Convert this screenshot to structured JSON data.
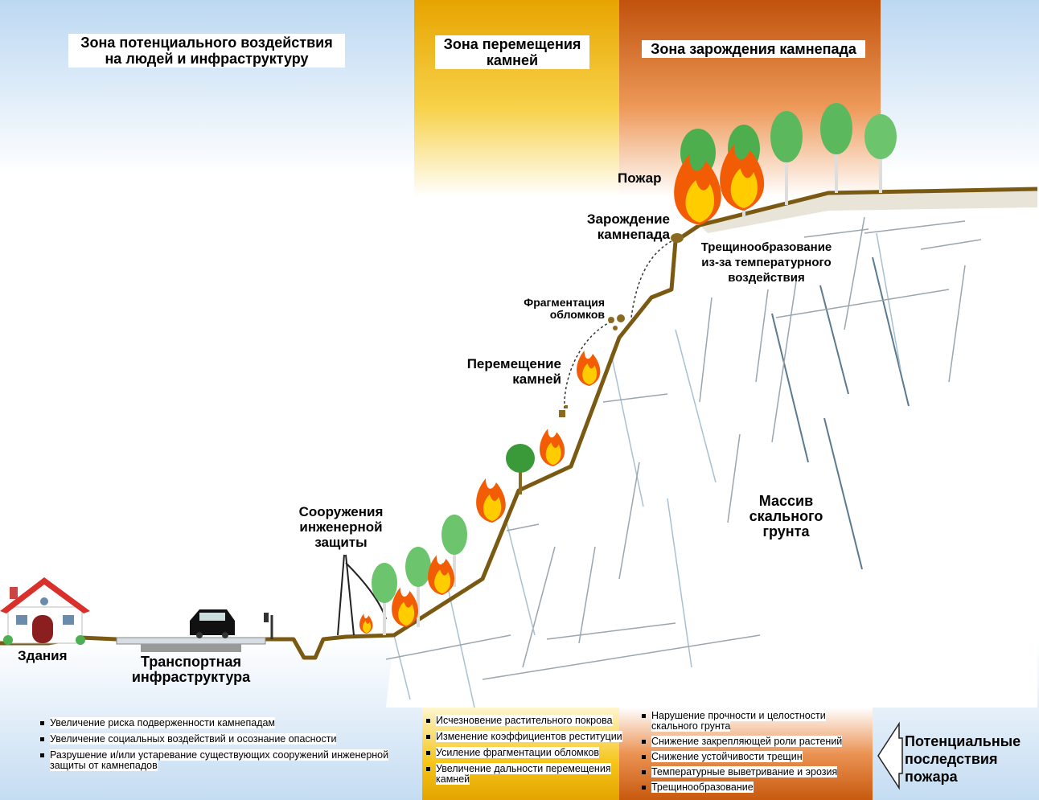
{
  "zones": {
    "impact": "Зона потенциального воздействия на людей и инфраструктуру",
    "transit": "Зона перемещения камней",
    "origin": "Зона зарождения камнепада"
  },
  "labels": {
    "fire": "Пожар",
    "rockfall_origin": "Зарождение камнепада",
    "cracking": "Трещинообразование из-за температурного воздействия",
    "fragmentation": "Фрагментация обломков",
    "movement": "Перемещение камней",
    "protection": "Сооружения инженерной защиты",
    "rock_mass": "Массив скального грунта",
    "buildings": "Здания",
    "transport": "Транспортная инфраструктура",
    "consequences": "Потенциальные последствия пожара"
  },
  "lists": {
    "impact": [
      "Увеличение риска подверженности камнепадам",
      "Увеличение социальных воздействий и осознание опасности",
      "Разрушение и/или устаревание существующих сооружений инженерной защиты от камнепадов"
    ],
    "transit": [
      "Исчезновение растительного покрова",
      "Изменение коэффициентов реституции",
      "Усиление фрагментации обломков",
      "Увеличение дальности перемещения камней"
    ],
    "origin": [
      "Нарушение прочности и целостности скального грунта",
      "Снижение закрепляющей роли растений",
      "Снижение устойчивости трещин",
      "Температурные выветривание и эрозия",
      "Трещинообразование"
    ]
  },
  "colors": {
    "ground": "#7a5a12",
    "transit_zone": "#f5c518",
    "origin_zone": "#d2691e",
    "impact_zone": "#bcd8f2"
  }
}
